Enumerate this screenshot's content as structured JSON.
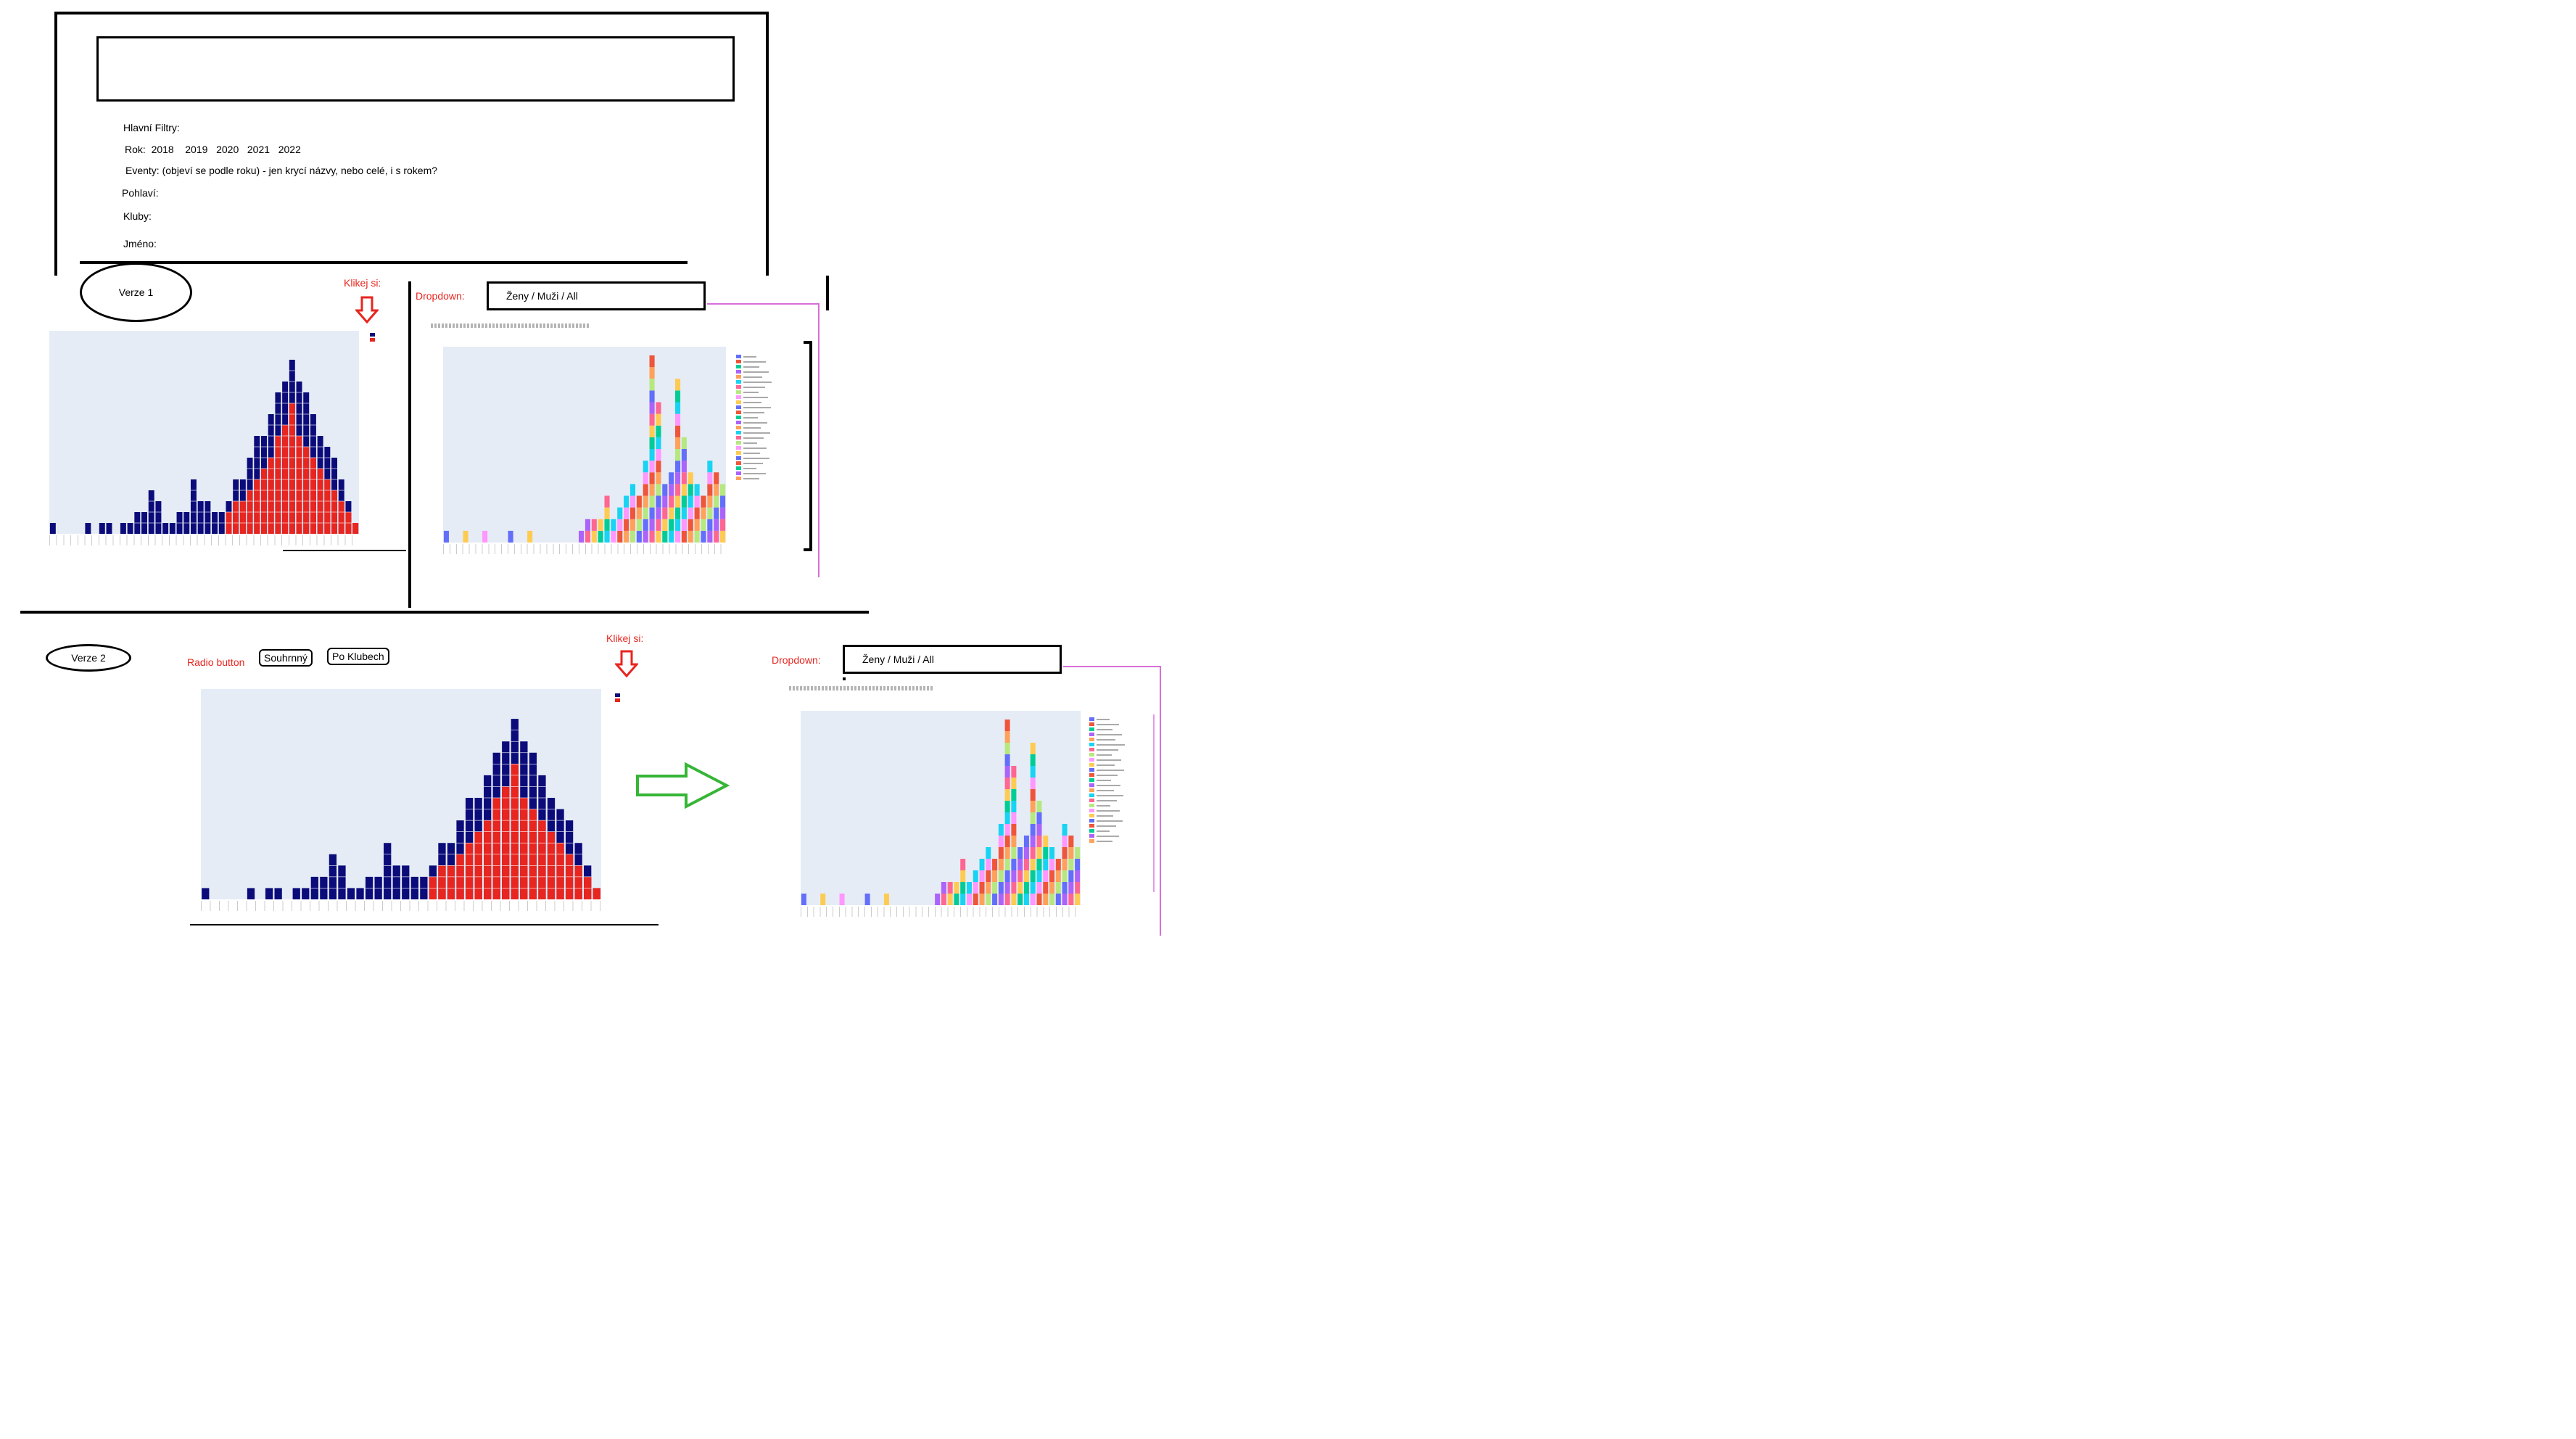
{
  "filters": {
    "heading": "Hlavní Filtry:",
    "year_line": "Rok:  2018    2019   2020   2021   2022",
    "events_line": "Eventy: (objeví se podle roku) - jen krycí názvy, nebo celé, i s rokem?",
    "gender_line": "Pohlaví:",
    "clubs_line": "Kluby:",
    "name_line": "Jméno:"
  },
  "v1": {
    "label": "Verze 1",
    "click_label": "Klikej si:",
    "dropdown_label": "Dropdown:",
    "dropdown_value": "Ženy / Muži / All"
  },
  "v2": {
    "label": "Verze 2",
    "radio_label": "Radio button",
    "radio_opt1": "Souhrnný",
    "radio_opt2": "Po Klubech",
    "click_label": "Klikej si:",
    "dropdown_label": "Dropdown:",
    "dropdown_value": "Ženy / Muži / All"
  },
  "colors": {
    "navy": "#0b0b7a",
    "red": "#e8251f",
    "plot_bg": "#e5ecf6",
    "arrow_green": "#36b536",
    "pink_line": "#d86fd8"
  },
  "chart_data": [
    {
      "type": "bar",
      "stacked": true,
      "categories_count": 44,
      "series": [
        {
          "values": [
            1,
            0,
            0,
            0,
            0,
            1,
            0,
            1,
            1,
            0,
            1,
            1,
            2,
            2,
            4,
            3,
            1,
            1,
            2,
            2,
            5,
            3,
            3,
            2,
            2,
            3,
            5,
            5,
            7,
            9,
            9,
            11,
            13,
            14,
            16,
            14,
            13,
            11,
            9,
            8,
            7,
            5,
            3,
            1
          ]
        },
        {
          "values": [
            0,
            0,
            0,
            0,
            0,
            0,
            0,
            0,
            0,
            0,
            0,
            0,
            0,
            0,
            0,
            0,
            0,
            0,
            0,
            0,
            0,
            0,
            0,
            0,
            0,
            2,
            3,
            3,
            4,
            5,
            6,
            7,
            9,
            10,
            12,
            9,
            8,
            7,
            6,
            5,
            4,
            3,
            2,
            1
          ]
        }
      ]
    },
    {
      "type": "bar",
      "stacked": true,
      "categories_count": 44,
      "series_count": 25,
      "totals": [
        1,
        0,
        0,
        1,
        0,
        0,
        1,
        0,
        0,
        0,
        1,
        0,
        0,
        1,
        0,
        0,
        0,
        0,
        0,
        0,
        0,
        1,
        2,
        2,
        2,
        4,
        2,
        3,
        4,
        5,
        4,
        7,
        16,
        12,
        5,
        6,
        14,
        9,
        6,
        5,
        4,
        7,
        6,
        5
      ]
    }
  ]
}
